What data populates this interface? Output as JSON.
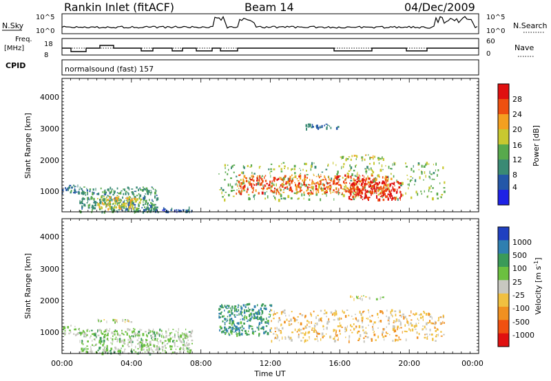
{
  "header": {
    "station": "Rankin Inlet (fitACF)",
    "beam": "Beam 14",
    "date": "04/Dec/2009"
  },
  "top_panels": {
    "nsky_label": "N.Sky",
    "nsky_ticks": [
      "10^5",
      "10^0"
    ],
    "nsearch_label": "N.Search",
    "nsearch_ticks": [
      "10^5",
      "10^0"
    ],
    "freq_label_line1": "Freq.",
    "freq_label_line2": "[MHz]",
    "freq_ticks": [
      "18",
      "8"
    ],
    "nave_label": "Nave",
    "nave_ticks": [
      "60",
      "0"
    ],
    "cpid_label": "CPID",
    "cpid_value": "normalsound (fast) 157"
  },
  "axes": {
    "ylabel": "Slant Range [km]",
    "y_ticks": [
      "1000",
      "2000",
      "3000",
      "4000"
    ],
    "x_ticks": [
      "00:00",
      "04:00",
      "08:00",
      "12:00",
      "16:00",
      "20:00",
      "00:00"
    ],
    "xlabel": "Time UT"
  },
  "colorbars": {
    "power": {
      "label": "Power [dB]",
      "ticks": [
        "4",
        "8",
        "12",
        "16",
        "20",
        "24",
        "28"
      ],
      "colors": [
        "#1e22e6",
        "#2457a8",
        "#3a8a74",
        "#58a94c",
        "#c8c830",
        "#f4a020",
        "#ee5010",
        "#e01010"
      ]
    },
    "velocity": {
      "label": "Velocity [m s",
      "label_sup": "-1",
      "label_end": "]",
      "ticks": [
        "1000",
        "500",
        "100",
        "25",
        "-25",
        "-100",
        "-500",
        "-1000"
      ],
      "colors": [
        "#2040c0",
        "#2f7fb0",
        "#3a9a58",
        "#6cc040",
        "#c8c8c0",
        "#f0c040",
        "#f09020",
        "#f05010",
        "#e01010"
      ]
    }
  },
  "chart_data": [
    {
      "type": "heatmap",
      "title": "Power",
      "xlabel": "Time UT",
      "ylabel": "Slant Range [km]",
      "xlim": [
        "00:00",
        "24:00"
      ],
      "ylim": [
        180,
        4500
      ],
      "colorbar_label": "Power [dB]",
      "colorbar_range": [
        0,
        30
      ],
      "regions": [
        {
          "t0": 0.0,
          "t1": 1.0,
          "r0": 800,
          "r1": 1100,
          "value": 8
        },
        {
          "t0": 1.0,
          "t1": 5.5,
          "r0": 200,
          "r1": 1000,
          "value": 10
        },
        {
          "t0": 2.0,
          "t1": 4.5,
          "r0": 300,
          "r1": 700,
          "value": 18
        },
        {
          "t0": 5.0,
          "t1": 7.5,
          "r0": 200,
          "r1": 350,
          "value": 6
        },
        {
          "t0": 9.0,
          "t1": 22.0,
          "r0": 600,
          "r1": 1800,
          "value": 14
        },
        {
          "t0": 10.0,
          "t1": 19.0,
          "r0": 800,
          "r1": 1400,
          "value": 24
        },
        {
          "t0": 16.5,
          "t1": 19.5,
          "r0": 600,
          "r1": 1200,
          "value": 28
        },
        {
          "t0": 16.0,
          "t1": 18.5,
          "r0": 1900,
          "r1": 2050,
          "value": 16
        },
        {
          "t0": 14.0,
          "t1": 16.0,
          "r0": 2900,
          "r1": 3050,
          "value": 8
        }
      ]
    },
    {
      "type": "heatmap",
      "title": "Velocity",
      "xlabel": "Time UT",
      "ylabel": "Slant Range [km]",
      "xlim": [
        "00:00",
        "24:00"
      ],
      "ylim": [
        180,
        4500
      ],
      "colorbar_label": "Velocity [m s-1]",
      "colorbar_range": [
        -1000,
        1000
      ],
      "regions": [
        {
          "t0": 0.0,
          "t1": 1.0,
          "r0": 800,
          "r1": 1100,
          "value": 100
        },
        {
          "t0": 1.0,
          "t1": 7.5,
          "r0": 200,
          "r1": 1000,
          "value": 150
        },
        {
          "t0": 2.0,
          "t1": 4.0,
          "r0": 1200,
          "r1": 1300,
          "value": 0
        },
        {
          "t0": 9.0,
          "t1": 12.0,
          "r0": 800,
          "r1": 1800,
          "value": 500
        },
        {
          "t0": 12.0,
          "t1": 22.0,
          "r0": 600,
          "r1": 1600,
          "value": -200
        },
        {
          "t0": 16.5,
          "t1": 18.5,
          "r0": 1950,
          "r1": 2050,
          "value": 0
        }
      ]
    }
  ]
}
